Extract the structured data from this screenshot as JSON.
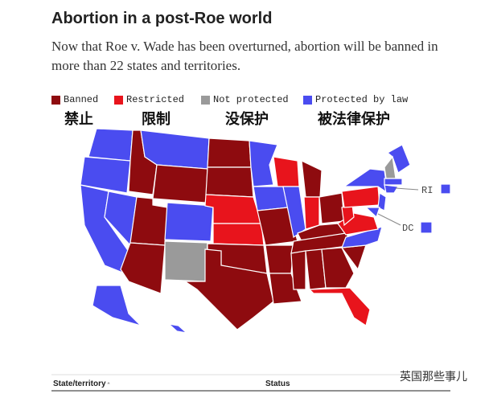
{
  "header": {
    "title": "Abortion in a post-Roe world",
    "subtitle": "Now that Roe v. Wade has been overturned, abortion will be banned in more than 22 states and territories."
  },
  "legend": {
    "items": [
      {
        "label": "Banned",
        "translation": "禁止",
        "color": "#8e0b0f"
      },
      {
        "label": "Restricted",
        "translation": "限制",
        "color": "#e8141c"
      },
      {
        "label": "Not protected",
        "translation": "没保护",
        "color": "#9a9a9a"
      },
      {
        "label": "Protected by law",
        "translation": "被法律保护",
        "color": "#4a4cf0"
      }
    ]
  },
  "callouts": {
    "ri": "RI",
    "dc": "DC"
  },
  "table": {
    "columns": [
      "State/territory",
      "Status"
    ]
  },
  "watermark": "英国那些事儿"
}
